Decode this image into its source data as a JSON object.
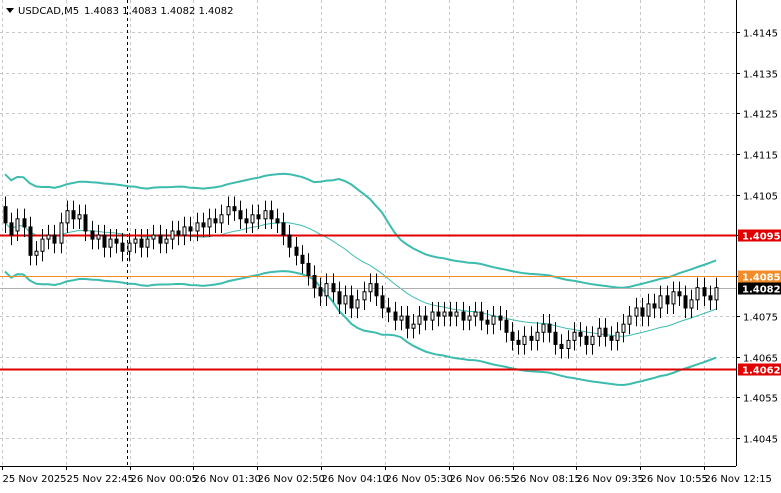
{
  "header": {
    "symbol": "USDCAD,M5",
    "quote": "1.4083 1.4083 1.4082 1.4082",
    "arrow_icon": "triangle-down-icon"
  },
  "colors": {
    "background": "#ffffff",
    "grid": "#c8c8c8",
    "candle": "#000000",
    "bollinger": "#3cbcae",
    "level_line": "#e00000",
    "ask_line": "#f28c28",
    "price_tag_bg": "#e00000",
    "price_tag_text": "#ffffff",
    "current_tag_bg": "#000000",
    "current_tag_text": "#ffffff"
  },
  "chart_data": {
    "type": "candlestick",
    "title": "USDCAD,M5",
    "ylim": [
      1.4038,
      1.4153
    ],
    "y_ticks": [
      "1.4145",
      "1.4135",
      "1.4125",
      "1.4115",
      "1.4105",
      "1.4095",
      "1.4085",
      "1.4075",
      "1.4065",
      "1.4055",
      "1.4045"
    ],
    "x_labels": [
      "25 Nov 2025",
      "25 Nov 22:45",
      "26 Nov 00:05",
      "26 Nov 01:30",
      "26 Nov 02:50",
      "26 Nov 04:10",
      "26 Nov 05:30",
      "26 Nov 06:55",
      "26 Nov 08:15",
      "26 Nov 09:35",
      "26 Nov 10:55",
      "26 Nov 12:15"
    ],
    "session_separator_index": 1,
    "horizontal_levels": [
      {
        "label": "1.4095",
        "value": 1.4095,
        "style": "level"
      },
      {
        "label": "1.4085",
        "value": 1.4085,
        "style": "ask"
      },
      {
        "label": "1.4062",
        "value": 1.4062,
        "style": "level"
      }
    ],
    "current_price": {
      "label": "1.4082",
      "value": 1.4082
    },
    "candles": [
      [
        1.4102,
        1.4098
      ],
      [
        1.4098,
        1.4095
      ],
      [
        1.4096,
        1.4099
      ],
      [
        1.4099,
        1.4097
      ],
      [
        1.4097,
        1.409
      ],
      [
        1.409,
        1.4091
      ],
      [
        1.4091,
        1.4094
      ],
      [
        1.4094,
        1.4095
      ],
      [
        1.4095,
        1.4093
      ],
      [
        1.4093,
        1.4098
      ],
      [
        1.4098,
        1.4101
      ],
      [
        1.4101,
        1.4099
      ],
      [
        1.4099,
        1.41
      ],
      [
        1.41,
        1.4096
      ],
      [
        1.4096,
        1.4094
      ],
      [
        1.4094,
        1.4095
      ],
      [
        1.4095,
        1.4092
      ],
      [
        1.4092,
        1.4094
      ],
      [
        1.4094,
        1.4093
      ],
      [
        1.4093,
        1.4091
      ],
      [
        1.4091,
        1.4093
      ],
      [
        1.4093,
        1.4094
      ],
      [
        1.4094,
        1.4092
      ],
      [
        1.4092,
        1.4094
      ],
      [
        1.4094,
        1.4095
      ],
      [
        1.4095,
        1.4093
      ],
      [
        1.4093,
        1.4094
      ],
      [
        1.4094,
        1.4096
      ],
      [
        1.4096,
        1.4095
      ],
      [
        1.4095,
        1.4097
      ],
      [
        1.4097,
        1.4096
      ],
      [
        1.4096,
        1.4098
      ],
      [
        1.4098,
        1.4097
      ],
      [
        1.4097,
        1.4099
      ],
      [
        1.4099,
        1.4098
      ],
      [
        1.4098,
        1.41
      ],
      [
        1.41,
        1.4102
      ],
      [
        1.4102,
        1.4101
      ],
      [
        1.4101,
        1.4099
      ],
      [
        1.4099,
        1.4098
      ],
      [
        1.4098,
        1.41
      ],
      [
        1.41,
        1.4099
      ],
      [
        1.4099,
        1.4101
      ],
      [
        1.4101,
        1.4099
      ],
      [
        1.4099,
        1.4098
      ],
      [
        1.4098,
        1.4095
      ],
      [
        1.4095,
        1.4092
      ],
      [
        1.4092,
        1.409
      ],
      [
        1.409,
        1.4088
      ],
      [
        1.4088,
        1.4085
      ],
      [
        1.4085,
        1.4082
      ],
      [
        1.4082,
        1.408
      ],
      [
        1.408,
        1.4083
      ],
      [
        1.4083,
        1.4081
      ],
      [
        1.4081,
        1.4078
      ],
      [
        1.4078,
        1.408
      ],
      [
        1.408,
        1.4077
      ],
      [
        1.4077,
        1.4079
      ],
      [
        1.4079,
        1.4081
      ],
      [
        1.4081,
        1.4083
      ],
      [
        1.4083,
        1.408
      ],
      [
        1.408,
        1.4077
      ],
      [
        1.4077,
        1.4076
      ],
      [
        1.4076,
        1.4074
      ],
      [
        1.4074,
        1.4075
      ],
      [
        1.4075,
        1.4072
      ],
      [
        1.4072,
        1.4073
      ],
      [
        1.4073,
        1.4075
      ],
      [
        1.4075,
        1.4074
      ],
      [
        1.4074,
        1.4076
      ],
      [
        1.4076,
        1.4075
      ],
      [
        1.4075,
        1.4076
      ],
      [
        1.4076,
        1.4075
      ],
      [
        1.4075,
        1.4076
      ],
      [
        1.4076,
        1.4074
      ],
      [
        1.4074,
        1.4075
      ],
      [
        1.4075,
        1.4076
      ],
      [
        1.4076,
        1.4074
      ],
      [
        1.4074,
        1.4073
      ],
      [
        1.4073,
        1.4075
      ],
      [
        1.4075,
        1.4074
      ],
      [
        1.4074,
        1.4071
      ],
      [
        1.4071,
        1.4069
      ],
      [
        1.4069,
        1.4068
      ],
      [
        1.4068,
        1.407
      ],
      [
        1.407,
        1.4069
      ],
      [
        1.4069,
        1.4071
      ],
      [
        1.4071,
        1.4073
      ],
      [
        1.4073,
        1.4071
      ],
      [
        1.4071,
        1.4068
      ],
      [
        1.4068,
        1.4067
      ],
      [
        1.4067,
        1.4069
      ],
      [
        1.4069,
        1.4071
      ],
      [
        1.4071,
        1.407
      ],
      [
        1.407,
        1.4068
      ],
      [
        1.4068,
        1.407
      ],
      [
        1.407,
        1.4072
      ],
      [
        1.4072,
        1.407
      ],
      [
        1.407,
        1.4069
      ],
      [
        1.4069,
        1.4071
      ],
      [
        1.4071,
        1.4073
      ],
      [
        1.4073,
        1.4075
      ],
      [
        1.4075,
        1.4077
      ],
      [
        1.4077,
        1.4075
      ],
      [
        1.4075,
        1.4078
      ],
      [
        1.4078,
        1.4077
      ],
      [
        1.4077,
        1.408
      ],
      [
        1.408,
        1.4078
      ],
      [
        1.4078,
        1.4081
      ],
      [
        1.4081,
        1.408
      ],
      [
        1.408,
        1.4077
      ],
      [
        1.4077,
        1.4079
      ],
      [
        1.4079,
        1.4082
      ],
      [
        1.4082,
        1.408
      ],
      [
        1.408,
        1.4079
      ],
      [
        1.4079,
        1.4082
      ]
    ]
  }
}
